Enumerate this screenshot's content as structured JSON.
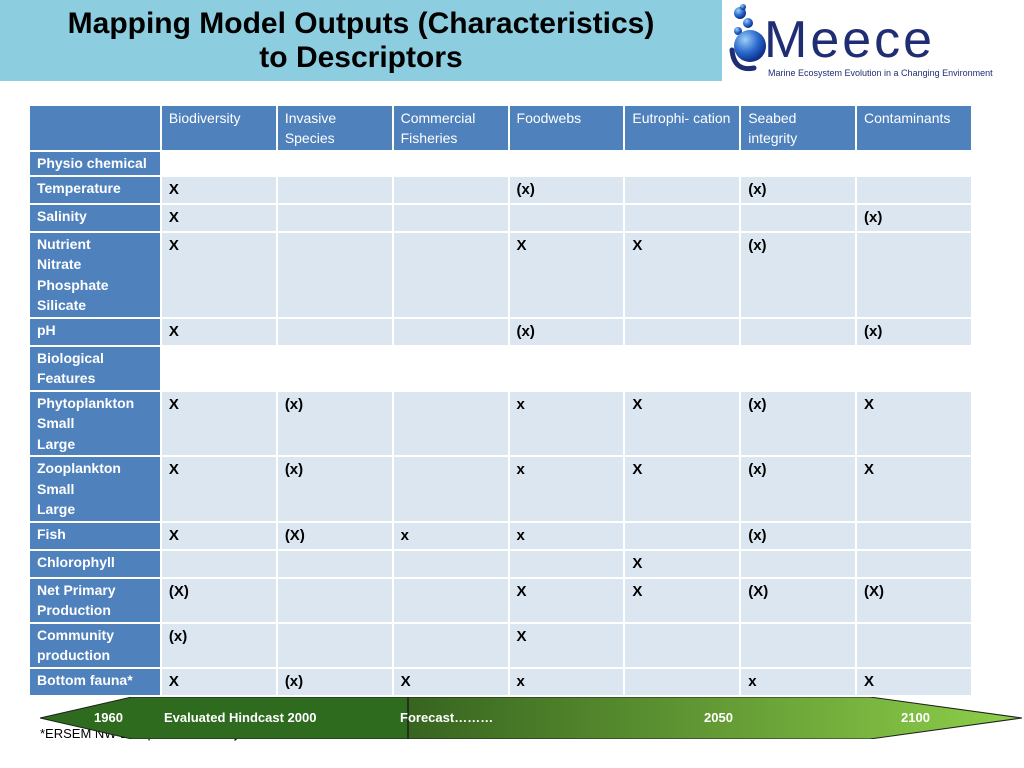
{
  "title": {
    "line1": "Mapping Model Outputs (Characteristics)",
    "line2": "to Descriptors"
  },
  "logo": {
    "word": "Meece",
    "tagline": "Marine Ecosystem Evolution in a Changing Environment",
    "icon": "bubbles-icon",
    "color": "#1f2d73"
  },
  "table": {
    "columns": [
      "Biodiversity",
      "Invasive Species",
      "Commercial Fisheries",
      "Foodwebs",
      "Eutrophi- cation",
      "Seabed integrity",
      "Contaminants"
    ],
    "rows": [
      {
        "label": "Physio chemical",
        "section": true,
        "cells": []
      },
      {
        "label": "Temperature",
        "cells": [
          "X",
          "",
          "",
          "(x)",
          "",
          "(x)",
          ""
        ]
      },
      {
        "label": "Salinity",
        "cells": [
          "X",
          "",
          "",
          "",
          "",
          "",
          "(x)"
        ]
      },
      {
        "label": "Nutrient\nNitrate\nPhosphate\nSilicate",
        "cells": [
          "X",
          "",
          "",
          "X",
          "X",
          "(x)",
          ""
        ]
      },
      {
        "label": "pH",
        "cells": [
          "X",
          "",
          "",
          "(x)",
          "",
          "",
          "(x)"
        ]
      },
      {
        "label": "Biological\nFeatures",
        "section": true,
        "cells": []
      },
      {
        "label": "Phytoplankton\nSmall\nLarge",
        "cells": [
          "X",
          "(x)",
          "",
          "x",
          "X",
          "(x)",
          "X"
        ]
      },
      {
        "label": "Zooplankton\nSmall\nLarge",
        "cells": [
          "X",
          "(x)",
          "",
          "x",
          "X",
          "(x)",
          "X"
        ]
      },
      {
        "label": "Fish",
        "cells": [
          "X",
          "(X)",
          "x",
          "x",
          "",
          "(x)",
          ""
        ]
      },
      {
        "label": "Chlorophyll",
        "cells": [
          "",
          "",
          "",
          "",
          "X",
          "",
          ""
        ]
      },
      {
        "label": "Net Primary\nProduction",
        "cells": [
          "(X)",
          "",
          "",
          "X",
          "X",
          "(X)",
          "(X)"
        ]
      },
      {
        "label": "Community\nproduction",
        "cells": [
          "(x)",
          "",
          "",
          "X",
          "",
          "",
          ""
        ]
      },
      {
        "label": "Bottom fauna*",
        "cells": [
          "X",
          "(x)",
          "X",
          "x",
          "",
          "x",
          "X"
        ]
      }
    ]
  },
  "timeline": {
    "labels": [
      "1960",
      "Evaluated Hindcast 2000",
      "Forecast………",
      "2050",
      "2100"
    ],
    "colors": {
      "hindcast": "#2f6b1f",
      "forecast_start": "#37641f",
      "forecast_end": "#8fd04a",
      "edge": "#1e1e1e"
    }
  },
  "footnote": "*ERSEM NW European Shelf Only"
}
